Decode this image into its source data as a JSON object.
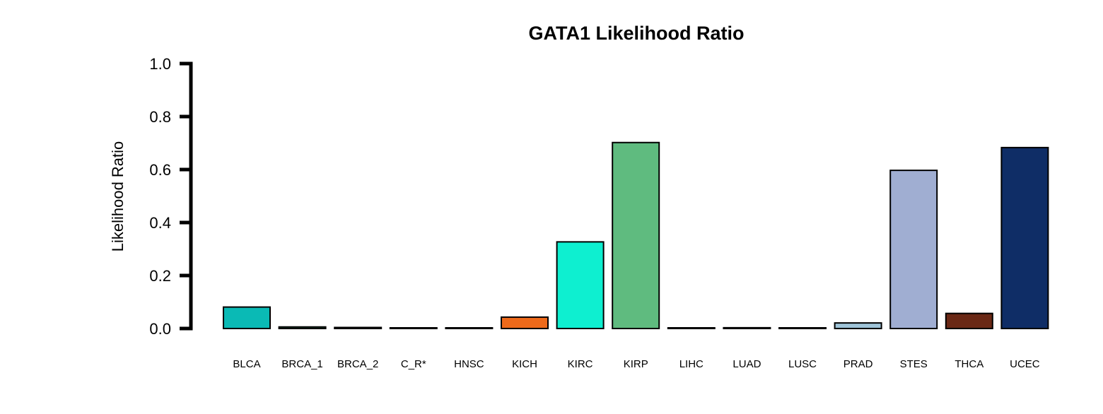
{
  "chart_data": {
    "type": "bar",
    "title": "GATA1 Likelihood Ratio",
    "xlabel": "",
    "ylabel": "Likelihood Ratio",
    "ylim": [
      0,
      1
    ],
    "yticks": [
      "0.0",
      "0.2",
      "0.4",
      "0.6",
      "0.8",
      "1.0"
    ],
    "grid": false,
    "legend": "none",
    "categories": [
      "BLCA",
      "BRCA_1",
      "BRCA_2",
      "C_R*",
      "HNSC",
      "KICH",
      "KIRC",
      "KIRP",
      "LIHC",
      "LUAD",
      "LUSC",
      "PRAD",
      "STES",
      "THCA",
      "UCEC"
    ],
    "values": [
      0.081,
      0.006,
      0.004,
      0.002,
      0.001,
      0.043,
      0.327,
      0.702,
      0.001,
      0.003,
      0.002,
      0.021,
      0.597,
      0.057,
      0.683
    ],
    "colors": [
      "#0ABAB5",
      "#2E8B57",
      "#D2691E",
      "#7FFFD4",
      "#DAA520",
      "#EE6A1B",
      "#0EEFD0",
      "#5FBB7F",
      "#7B68EE",
      "#8B4513",
      "#228B22",
      "#9FC4D8",
      "#A0AED2",
      "#6A2815",
      "#0F2D66"
    ]
  }
}
